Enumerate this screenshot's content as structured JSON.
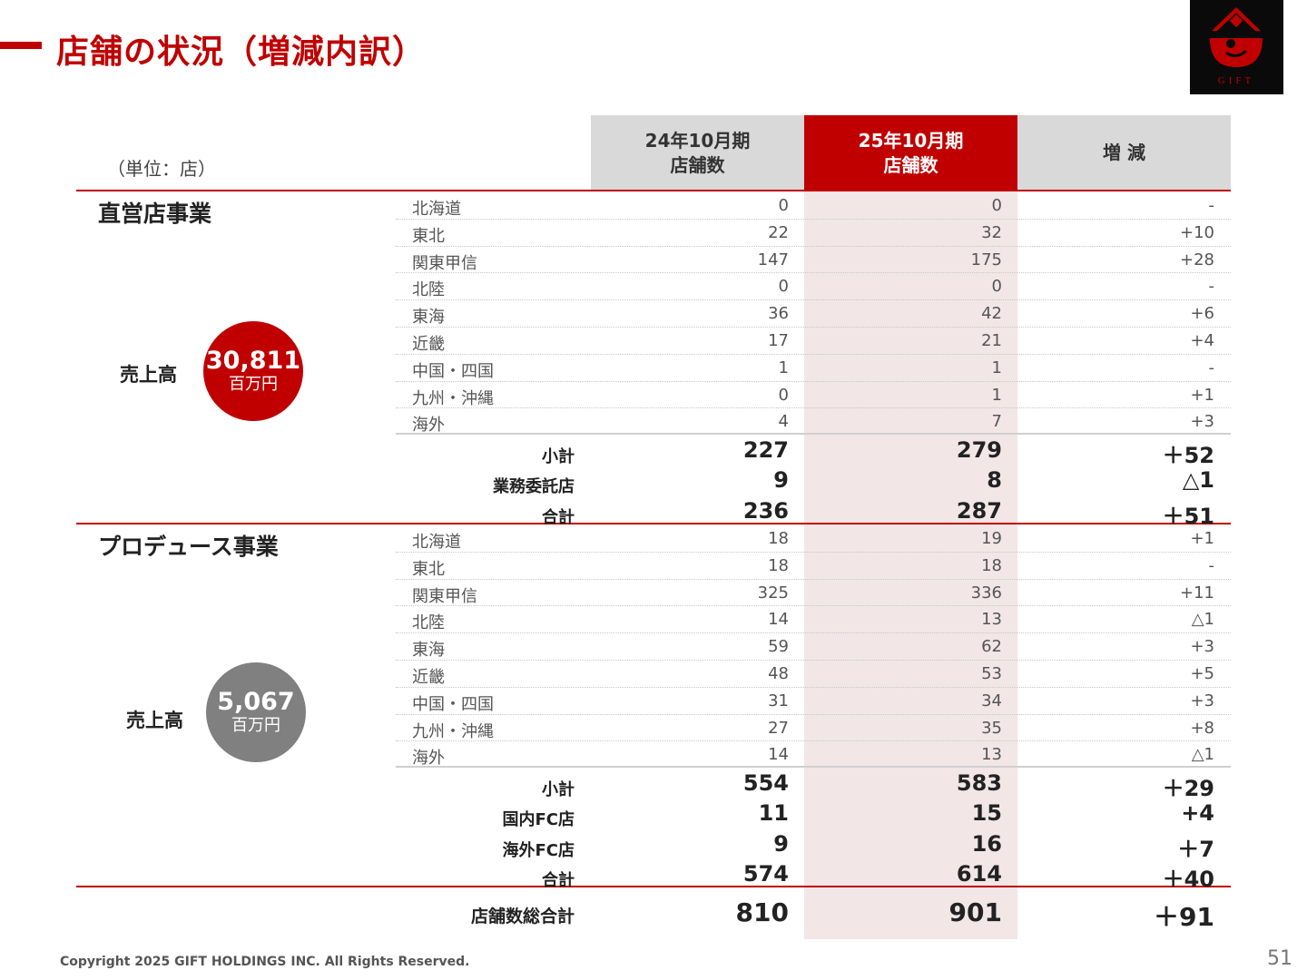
{
  "title": "店舗の状況（増減内訳）",
  "logo_text": "GIFT",
  "unit": "（単位：店）",
  "columns": {
    "prev_line1": "24年10月期",
    "prev_line2": "店舗数",
    "curr_line1": "25年10月期",
    "curr_line2": "店舗数",
    "diff": "増 減"
  },
  "direct": {
    "title": "直営店事業",
    "sales_label": "売上高",
    "sales_value": "30,811",
    "sales_unit": "百万円",
    "rows": [
      {
        "label": "北海道",
        "prev": "0",
        "curr": "0",
        "diff": "-"
      },
      {
        "label": "東北",
        "prev": "22",
        "curr": "32",
        "diff": "+10"
      },
      {
        "label": "関東甲信",
        "prev": "147",
        "curr": "175",
        "diff": "+28"
      },
      {
        "label": "北陸",
        "prev": "0",
        "curr": "0",
        "diff": "-"
      },
      {
        "label": "東海",
        "prev": "36",
        "curr": "42",
        "diff": "+6"
      },
      {
        "label": "近畿",
        "prev": "17",
        "curr": "21",
        "diff": "+4"
      },
      {
        "label": "中国・四国",
        "prev": "1",
        "curr": "1",
        "diff": "-"
      },
      {
        "label": "九州・沖縄",
        "prev": "0",
        "curr": "1",
        "diff": "+1"
      },
      {
        "label": "海外",
        "prev": "4",
        "curr": "7",
        "diff": "+3"
      }
    ],
    "summary": [
      {
        "label": "小計",
        "prev": "227",
        "curr": "279",
        "diff": "＋52"
      },
      {
        "label": "業務委託店",
        "prev": "9",
        "curr": "8",
        "diff": "△1"
      },
      {
        "label": "合計",
        "prev": "236",
        "curr": "287",
        "diff": "＋51"
      }
    ]
  },
  "produce": {
    "title": "プロデュース事業",
    "sales_label": "売上高",
    "sales_value": "5,067",
    "sales_unit": "百万円",
    "rows": [
      {
        "label": "北海道",
        "prev": "18",
        "curr": "19",
        "diff": "+1"
      },
      {
        "label": "東北",
        "prev": "18",
        "curr": "18",
        "diff": "-"
      },
      {
        "label": "関東甲信",
        "prev": "325",
        "curr": "336",
        "diff": "+11"
      },
      {
        "label": "北陸",
        "prev": "14",
        "curr": "13",
        "diff": "△1"
      },
      {
        "label": "東海",
        "prev": "59",
        "curr": "62",
        "diff": "+3"
      },
      {
        "label": "近畿",
        "prev": "48",
        "curr": "53",
        "diff": "+5"
      },
      {
        "label": "中国・四国",
        "prev": "31",
        "curr": "34",
        "diff": "+3"
      },
      {
        "label": "九州・沖縄",
        "prev": "27",
        "curr": "35",
        "diff": "+8"
      },
      {
        "label": "海外",
        "prev": "14",
        "curr": "13",
        "diff": "△1"
      }
    ],
    "summary": [
      {
        "label": "小計",
        "prev": "554",
        "curr": "583",
        "diff": "＋29"
      },
      {
        "label": "国内FC店",
        "prev": "11",
        "curr": "15",
        "diff": "+4"
      },
      {
        "label": "海外FC店",
        "prev": "9",
        "curr": "16",
        "diff": "＋7"
      },
      {
        "label": "合計",
        "prev": "574",
        "curr": "614",
        "diff": "＋40"
      }
    ]
  },
  "grand_total": {
    "label": "店舗数総合計",
    "prev": "810",
    "curr": "901",
    "diff": "＋91"
  },
  "copyright": "Copyright 2025 GIFT HOLDINGS INC. All Rights Reserved.",
  "page_number": "51",
  "colors": {
    "accent": "#c00000",
    "header_gray": "#d9d9d9",
    "highlight": "#f2e6e6",
    "circle_gray": "#808080"
  }
}
